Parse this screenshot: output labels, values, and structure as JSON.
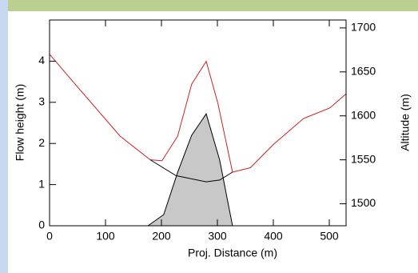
{
  "chart_data": {
    "type": "line",
    "xlabel": "Proj. Distance (m)",
    "ylabel": "Flow height (m)",
    "y2label": "Altitude (m)",
    "xlim": [
      0,
      530
    ],
    "xticks": [
      0,
      100,
      200,
      300,
      400,
      500
    ],
    "ylim": [
      0,
      5
    ],
    "yticks": [
      0,
      1,
      2,
      3,
      4
    ],
    "y2lim": [
      1475,
      1709
    ],
    "y2ticks": [
      1500,
      1550,
      1600,
      1650,
      1700
    ],
    "series": [
      {
        "type": "area",
        "color": "#c8c8c8",
        "x": [
          176,
          204,
          229,
          254,
          280,
          304,
          327
        ],
        "values": [
          0,
          0.27,
          1.3,
          2.2,
          2.72,
          1.6,
          0
        ]
      },
      {
        "color": "#cc2222",
        "axis": "y2",
        "x": [
          0,
          54,
          126,
          180,
          201,
          229,
          254,
          280,
          301,
          327,
          359,
          401,
          454,
          501,
          530
        ],
        "values": [
          1670,
          1630,
          1577,
          1550,
          1549,
          1577,
          1636,
          1662,
          1614,
          1536,
          1541,
          1568,
          1597,
          1609,
          1625
        ]
      },
      {
        "color": "#000000",
        "axis": "y2",
        "x": [
          180,
          226,
          280,
          304,
          327
        ],
        "values": [
          1550,
          1532,
          1525,
          1527,
          1536
        ]
      }
    ]
  }
}
